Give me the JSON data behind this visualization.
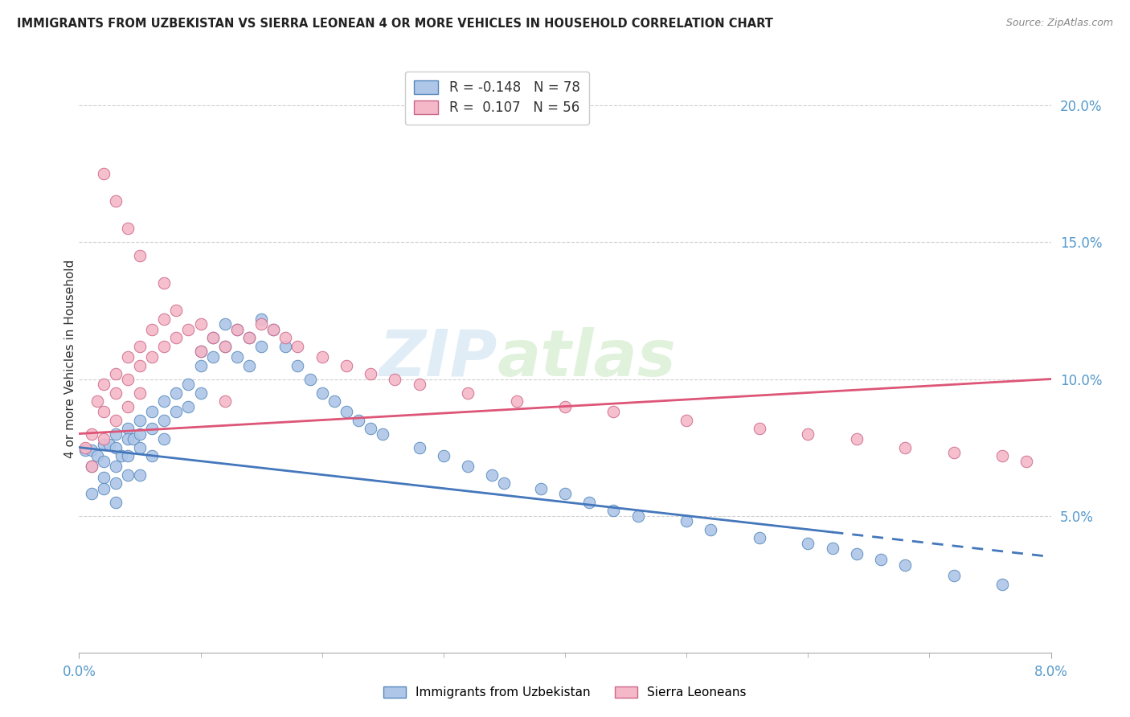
{
  "title": "IMMIGRANTS FROM UZBEKISTAN VS SIERRA LEONEAN 4 OR MORE VEHICLES IN HOUSEHOLD CORRELATION CHART",
  "source": "Source: ZipAtlas.com",
  "ylabel": "4 or more Vehicles in Household",
  "legend_label1": "Immigrants from Uzbekistan",
  "legend_label2": "Sierra Leoneans",
  "color_uzbek": "#aec6e8",
  "color_sierra": "#f4b8c8",
  "edge_color_uzbek": "#5588bb",
  "edge_color_sierra": "#cc6688",
  "trend_color_uzbek": "#4477bb",
  "trend_color_sierra": "#dd5577",
  "watermark_zip": "ZIP",
  "watermark_atlas": "atlas",
  "xlim": [
    0.0,
    0.08
  ],
  "ylim": [
    0.0,
    0.215
  ],
  "ytick_vals": [
    0.05,
    0.1,
    0.15,
    0.2
  ],
  "uzbek_x": [
    0.0005,
    0.001,
    0.001,
    0.001,
    0.0015,
    0.002,
    0.002,
    0.002,
    0.002,
    0.0025,
    0.003,
    0.003,
    0.003,
    0.003,
    0.003,
    0.0035,
    0.004,
    0.004,
    0.004,
    0.004,
    0.0045,
    0.005,
    0.005,
    0.005,
    0.005,
    0.006,
    0.006,
    0.006,
    0.007,
    0.007,
    0.007,
    0.008,
    0.008,
    0.009,
    0.009,
    0.01,
    0.01,
    0.01,
    0.011,
    0.011,
    0.012,
    0.012,
    0.013,
    0.013,
    0.014,
    0.014,
    0.015,
    0.015,
    0.016,
    0.017,
    0.018,
    0.019,
    0.02,
    0.021,
    0.022,
    0.023,
    0.024,
    0.025,
    0.028,
    0.03,
    0.032,
    0.034,
    0.035,
    0.038,
    0.04,
    0.042,
    0.044,
    0.046,
    0.05,
    0.052,
    0.056,
    0.06,
    0.062,
    0.064,
    0.066,
    0.068,
    0.072,
    0.076
  ],
  "uzbek_y": [
    0.074,
    0.074,
    0.068,
    0.058,
    0.072,
    0.076,
    0.07,
    0.064,
    0.06,
    0.076,
    0.08,
    0.075,
    0.068,
    0.062,
    0.055,
    0.072,
    0.082,
    0.078,
    0.072,
    0.065,
    0.078,
    0.085,
    0.08,
    0.075,
    0.065,
    0.088,
    0.082,
    0.072,
    0.092,
    0.085,
    0.078,
    0.095,
    0.088,
    0.098,
    0.09,
    0.11,
    0.105,
    0.095,
    0.115,
    0.108,
    0.12,
    0.112,
    0.118,
    0.108,
    0.115,
    0.105,
    0.122,
    0.112,
    0.118,
    0.112,
    0.105,
    0.1,
    0.095,
    0.092,
    0.088,
    0.085,
    0.082,
    0.08,
    0.075,
    0.072,
    0.068,
    0.065,
    0.062,
    0.06,
    0.058,
    0.055,
    0.052,
    0.05,
    0.048,
    0.045,
    0.042,
    0.04,
    0.038,
    0.036,
    0.034,
    0.032,
    0.028,
    0.025
  ],
  "sierra_x": [
    0.0005,
    0.001,
    0.001,
    0.0015,
    0.002,
    0.002,
    0.002,
    0.003,
    0.003,
    0.003,
    0.004,
    0.004,
    0.004,
    0.005,
    0.005,
    0.005,
    0.006,
    0.006,
    0.007,
    0.007,
    0.008,
    0.008,
    0.009,
    0.01,
    0.01,
    0.011,
    0.012,
    0.013,
    0.014,
    0.015,
    0.016,
    0.017,
    0.018,
    0.02,
    0.022,
    0.024,
    0.026,
    0.028,
    0.032,
    0.036,
    0.04,
    0.044,
    0.05,
    0.056,
    0.06,
    0.064,
    0.068,
    0.072,
    0.076,
    0.078,
    0.002,
    0.003,
    0.004,
    0.005,
    0.007,
    0.012
  ],
  "sierra_y": [
    0.075,
    0.08,
    0.068,
    0.092,
    0.098,
    0.088,
    0.078,
    0.102,
    0.095,
    0.085,
    0.108,
    0.1,
    0.09,
    0.112,
    0.105,
    0.095,
    0.118,
    0.108,
    0.122,
    0.112,
    0.125,
    0.115,
    0.118,
    0.12,
    0.11,
    0.115,
    0.112,
    0.118,
    0.115,
    0.12,
    0.118,
    0.115,
    0.112,
    0.108,
    0.105,
    0.102,
    0.1,
    0.098,
    0.095,
    0.092,
    0.09,
    0.088,
    0.085,
    0.082,
    0.08,
    0.078,
    0.075,
    0.073,
    0.072,
    0.07,
    0.175,
    0.165,
    0.155,
    0.145,
    0.135,
    0.092
  ]
}
